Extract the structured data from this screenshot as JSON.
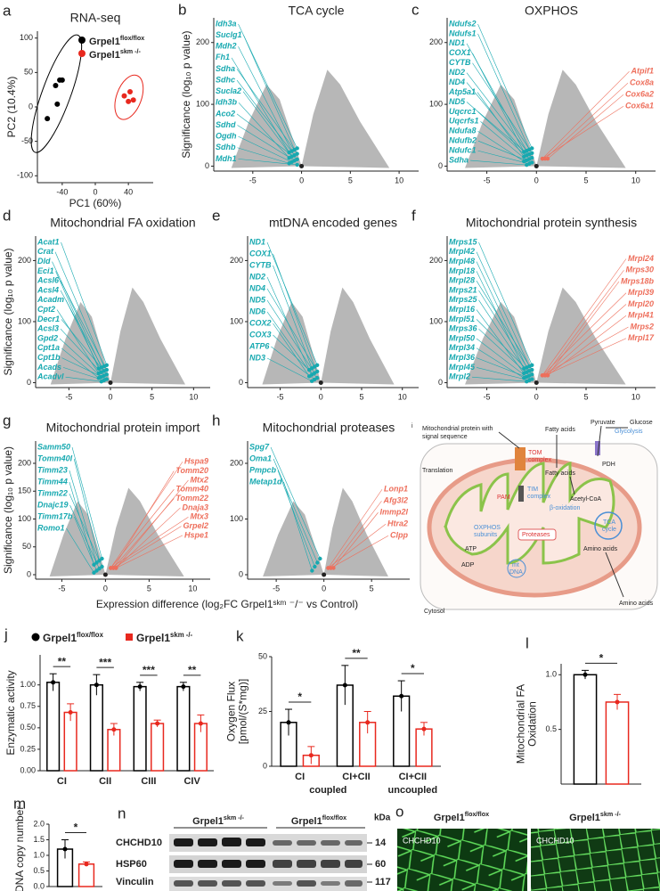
{
  "chart_data": [
    {
      "type": "scatter",
      "letter": "a",
      "title": "RNA-seq",
      "xlabel": "PC1 (60%)",
      "ylabel": "PC2 (10.4%)",
      "xlim": [
        -70,
        70
      ],
      "ylim": [
        -110,
        110
      ],
      "xticks": [
        -40,
        0,
        40
      ],
      "yticks": [
        -100,
        -50,
        0,
        50,
        100
      ],
      "series": [
        {
          "name": "Grpel1",
          "sup": "flox/flox",
          "color": "#000000",
          "x": [
            -48,
            -43,
            -40,
            -46,
            -58
          ],
          "y": [
            31,
            39,
            39,
            4,
            -17
          ]
        },
        {
          "name": "Grpel1",
          "sup": "skm -/-",
          "color": "#e8281e",
          "x": [
            35,
            42,
            40,
            46
          ],
          "y": [
            16,
            22,
            8,
            10
          ]
        }
      ]
    },
    {
      "type": "volcano",
      "letter": "b",
      "title": "TCA cycle",
      "ylabel": "Significance (log₁₀ p value)",
      "xlim": [
        -9,
        12
      ],
      "ylim": [
        -8,
        240
      ],
      "xticks": [
        -5,
        0,
        5,
        10
      ],
      "yticks": [
        0,
        100,
        200
      ],
      "left_genes": [
        "Idh3a",
        "Suclg1",
        "Mdh2",
        "Fh1",
        "Sdha",
        "Sdhc",
        "Sucla2",
        "Idh3b",
        "Aco2",
        "Sdhd",
        "Ogdh",
        "Sdhb",
        "Mdh1"
      ],
      "right_genes": []
    },
    {
      "type": "volcano",
      "letter": "c",
      "title": "OXPHOS",
      "xlim": [
        -9,
        12
      ],
      "ylim": [
        -8,
        240
      ],
      "xticks": [
        -5,
        0,
        5,
        10
      ],
      "yticks": [
        0,
        100,
        200
      ],
      "left_genes": [
        "Ndufs2",
        "Ndufs1",
        "ND1",
        "COX1",
        "CYTB",
        "ND2",
        "ND4",
        "Atp5a1",
        "ND5",
        "Uqcrc1",
        "Uqcrfs1",
        "Ndufa8",
        "Ndufb2",
        "Ndufc1",
        "Sdha"
      ],
      "right_genes": [
        "Atpif1",
        "Cox8a",
        "Cox6a2",
        "Cox6a1"
      ]
    },
    {
      "type": "volcano",
      "letter": "d",
      "title": "Mitochondrial FA oxidation",
      "ylabel": "Significance (log₁₀ p value)",
      "xlim": [
        -9,
        12
      ],
      "ylim": [
        -8,
        240
      ],
      "xticks": [
        -5,
        0,
        5,
        10
      ],
      "yticks": [
        0,
        100,
        200
      ],
      "left_genes": [
        "Acat1",
        "Crat",
        "Dld",
        "Eci1",
        "Acsl6",
        "Acsl4",
        "Acadm",
        "Cpt2",
        "Decr1",
        "Acsl3",
        "Gpd2",
        "Cpt1a",
        "Cpt1b",
        "Acads",
        "Acadvl"
      ],
      "right_genes": []
    },
    {
      "type": "volcano",
      "letter": "e",
      "title": "mtDNA encoded genes",
      "xlim": [
        -9,
        12
      ],
      "ylim": [
        -8,
        240
      ],
      "xticks": [
        -5,
        0,
        5,
        10
      ],
      "yticks": [
        0,
        100,
        200
      ],
      "left_genes": [
        "ND1",
        "COX1",
        "CYTB",
        "ND2",
        "ND4",
        "ND5",
        "ND6",
        "COX2",
        "COX3",
        "ATP6",
        "ND3"
      ],
      "right_genes": []
    },
    {
      "type": "volcano",
      "letter": "f",
      "title": "Mitochondrial protein synthesis",
      "xlim": [
        -9,
        12
      ],
      "ylim": [
        -8,
        240
      ],
      "xticks": [
        -5,
        0,
        5,
        10
      ],
      "yticks": [
        0,
        100,
        200
      ],
      "left_genes": [
        "Mrps15",
        "Mrpl42",
        "Mrpl48",
        "Mrpl18",
        "Mrpl28",
        "Mrps21",
        "Mrps25",
        "Mrpl16",
        "Mrpl51",
        "Mrps36",
        "Mrpl50",
        "Mrpl34",
        "Mrpl36",
        "Mrpl45",
        "Mrpl2"
      ],
      "right_genes": [
        "Mrpl24",
        "Mrps30",
        "Mrps18b",
        "Mrpl39",
        "Mrpl20",
        "Mrpl41",
        "Mrps2",
        "Mrpl17"
      ]
    },
    {
      "type": "volcano",
      "letter": "g",
      "title": "Mitochondrial protein import",
      "ylabel": "Significance (log₁₀ p value)",
      "xlim": [
        -8,
        12
      ],
      "ylim": [
        -8,
        240
      ],
      "xticks": [
        -5,
        0,
        5,
        10
      ],
      "yticks": [
        0,
        50,
        100,
        150,
        200
      ],
      "left_genes": [
        "Samm50",
        "Tomm40l",
        "Timm23",
        "Timm44",
        "Timm22",
        "Dnajc19",
        "Timm17b",
        "Romo1"
      ],
      "right_genes": [
        "Hspa9",
        "Tomm20",
        "Mtx2",
        "Tomm40",
        "Tomm22",
        "Dnaja3",
        "Mtx3",
        "Grpel2",
        "Hspe1"
      ]
    },
    {
      "type": "volcano",
      "letter": "h",
      "title": "Mitochondrial proteases",
      "xlim": [
        -8,
        9
      ],
      "ylim": [
        -8,
        240
      ],
      "xticks": [
        -5,
        0,
        5
      ],
      "yticks": [
        0,
        100,
        200
      ],
      "left_genes": [
        "Spg7",
        "Oma1",
        "Pmpcb",
        "Metap1d"
      ],
      "right_genes": [
        "Lonp1",
        "Afg3l2",
        "Immp2l",
        "Htra2",
        "Clpp"
      ]
    },
    {
      "type": "bar",
      "letter": "j",
      "ylabel": "Enzymatic activity",
      "categories": [
        "CI",
        "CII",
        "CIII",
        "CIV"
      ],
      "ylim": [
        0,
        1.35
      ],
      "yticks": [
        {
          "value": 0,
          "label": "0.00"
        },
        0.25,
        {
          "value": 0.5,
          "label": "0.50"
        },
        0.75,
        {
          "value": 1,
          "label": "1.00"
        }
      ],
      "series": [
        {
          "name": "Grpel1",
          "sup": "flox/flox",
          "color": "#000000",
          "values": [
            1.03,
            1.0,
            0.98,
            0.98
          ],
          "errors": [
            0.1,
            0.12,
            0.05,
            0.05
          ]
        },
        {
          "name": "Grpel1",
          "sup": "skm -/-",
          "color": "#e8281e",
          "values": [
            0.68,
            0.48,
            0.55,
            0.55
          ],
          "errors": [
            0.1,
            0.07,
            0.04,
            0.1
          ]
        }
      ],
      "significance": [
        "**",
        "***",
        "***",
        "**"
      ]
    },
    {
      "type": "bar",
      "letter": "k",
      "ylabel": [
        "Oxygen Flux",
        "[pmol/(S*mg)]"
      ],
      "categories": [
        "CI",
        "CI+CII",
        "CI+CII"
      ],
      "group_labels": [
        "coupled",
        "uncoupled"
      ],
      "ylim": [
        0,
        50
      ],
      "yticks": [
        0,
        25,
        50
      ],
      "series": [
        {
          "color": "#000000",
          "values": [
            20,
            37,
            32
          ],
          "errors": [
            6,
            9,
            7
          ]
        },
        {
          "color": "#e8281e",
          "values": [
            5,
            20,
            17
          ],
          "errors": [
            4,
            5,
            3
          ]
        }
      ],
      "significance": [
        "*",
        "**",
        "*"
      ]
    },
    {
      "type": "bar",
      "letter": "l",
      "ylabel": [
        "Mitochondrial FA",
        "Oxidation"
      ],
      "categories": [
        null
      ],
      "ylim": [
        0,
        1.1
      ],
      "yticks": [
        0.5,
        {
          "value": 1,
          "label": "1.0"
        }
      ],
      "series": [
        {
          "color": "#000000",
          "values": [
            1.0
          ],
          "errors": [
            0.04
          ]
        },
        {
          "color": "#e8281e",
          "values": [
            0.75
          ],
          "errors": [
            0.07
          ]
        }
      ],
      "significance": [
        "*"
      ]
    },
    {
      "type": "bar",
      "letter": "m",
      "ylabel": "mtDNA copy number",
      "categories": [
        null
      ],
      "ylim": [
        0,
        2
      ],
      "yticks": [
        {
          "value": 0,
          "label": "0.0"
        },
        0.5,
        {
          "value": 1,
          "label": "1.0"
        },
        1.5,
        {
          "value": 2,
          "label": "2.0"
        }
      ],
      "series": [
        {
          "color": "#000000",
          "values": [
            1.2
          ],
          "errors": [
            0.3
          ]
        },
        {
          "color": "#e8281e",
          "values": [
            0.72
          ],
          "errors": [
            0.07
          ]
        }
      ],
      "significance": [
        "*"
      ]
    }
  ],
  "shared_xlabel": "Expression difference (log₂FC Grpel1ˢᵏᵐ ⁻/⁻ vs Control)",
  "diagram_i": {
    "letter": "i",
    "labels": [
      "Mitochondrial protein with",
      "signal sequence",
      "Translation",
      "TOM",
      "complex",
      "Fatty acids",
      "Fatty acids",
      "Pyruvate",
      "Glucose",
      "Glycolysis",
      "PDH",
      "Acetyl-CoA",
      "PAM",
      "TIM",
      "complex",
      "β-oxidation",
      "OXPHOS",
      "subunits",
      "Proteases",
      "TCA",
      "cycle",
      "Amino acids",
      "Amino acids",
      "mt",
      "DNA",
      "ATP",
      "ADP",
      "Cytosol"
    ]
  },
  "blot_n": {
    "letter": "n",
    "groups": [
      {
        "name": "Grpel1",
        "sup": "skm -/-"
      },
      {
        "name": "Grpel1",
        "sup": "flox/flox"
      }
    ],
    "unit": "kDa",
    "rows": [
      {
        "protein": "CHCHD10",
        "kda": 14
      },
      {
        "protein": "HSP60",
        "kda": 60
      },
      {
        "protein": "Vinculin",
        "kda": 117
      }
    ]
  },
  "images_o": {
    "letter": "o",
    "images": [
      {
        "name": "Grpel1",
        "sup": "flox/flox",
        "stain": "CHCHD10"
      },
      {
        "name": "Grpel1",
        "sup": "skm -/-",
        "stain": "CHCHD10"
      }
    ]
  }
}
